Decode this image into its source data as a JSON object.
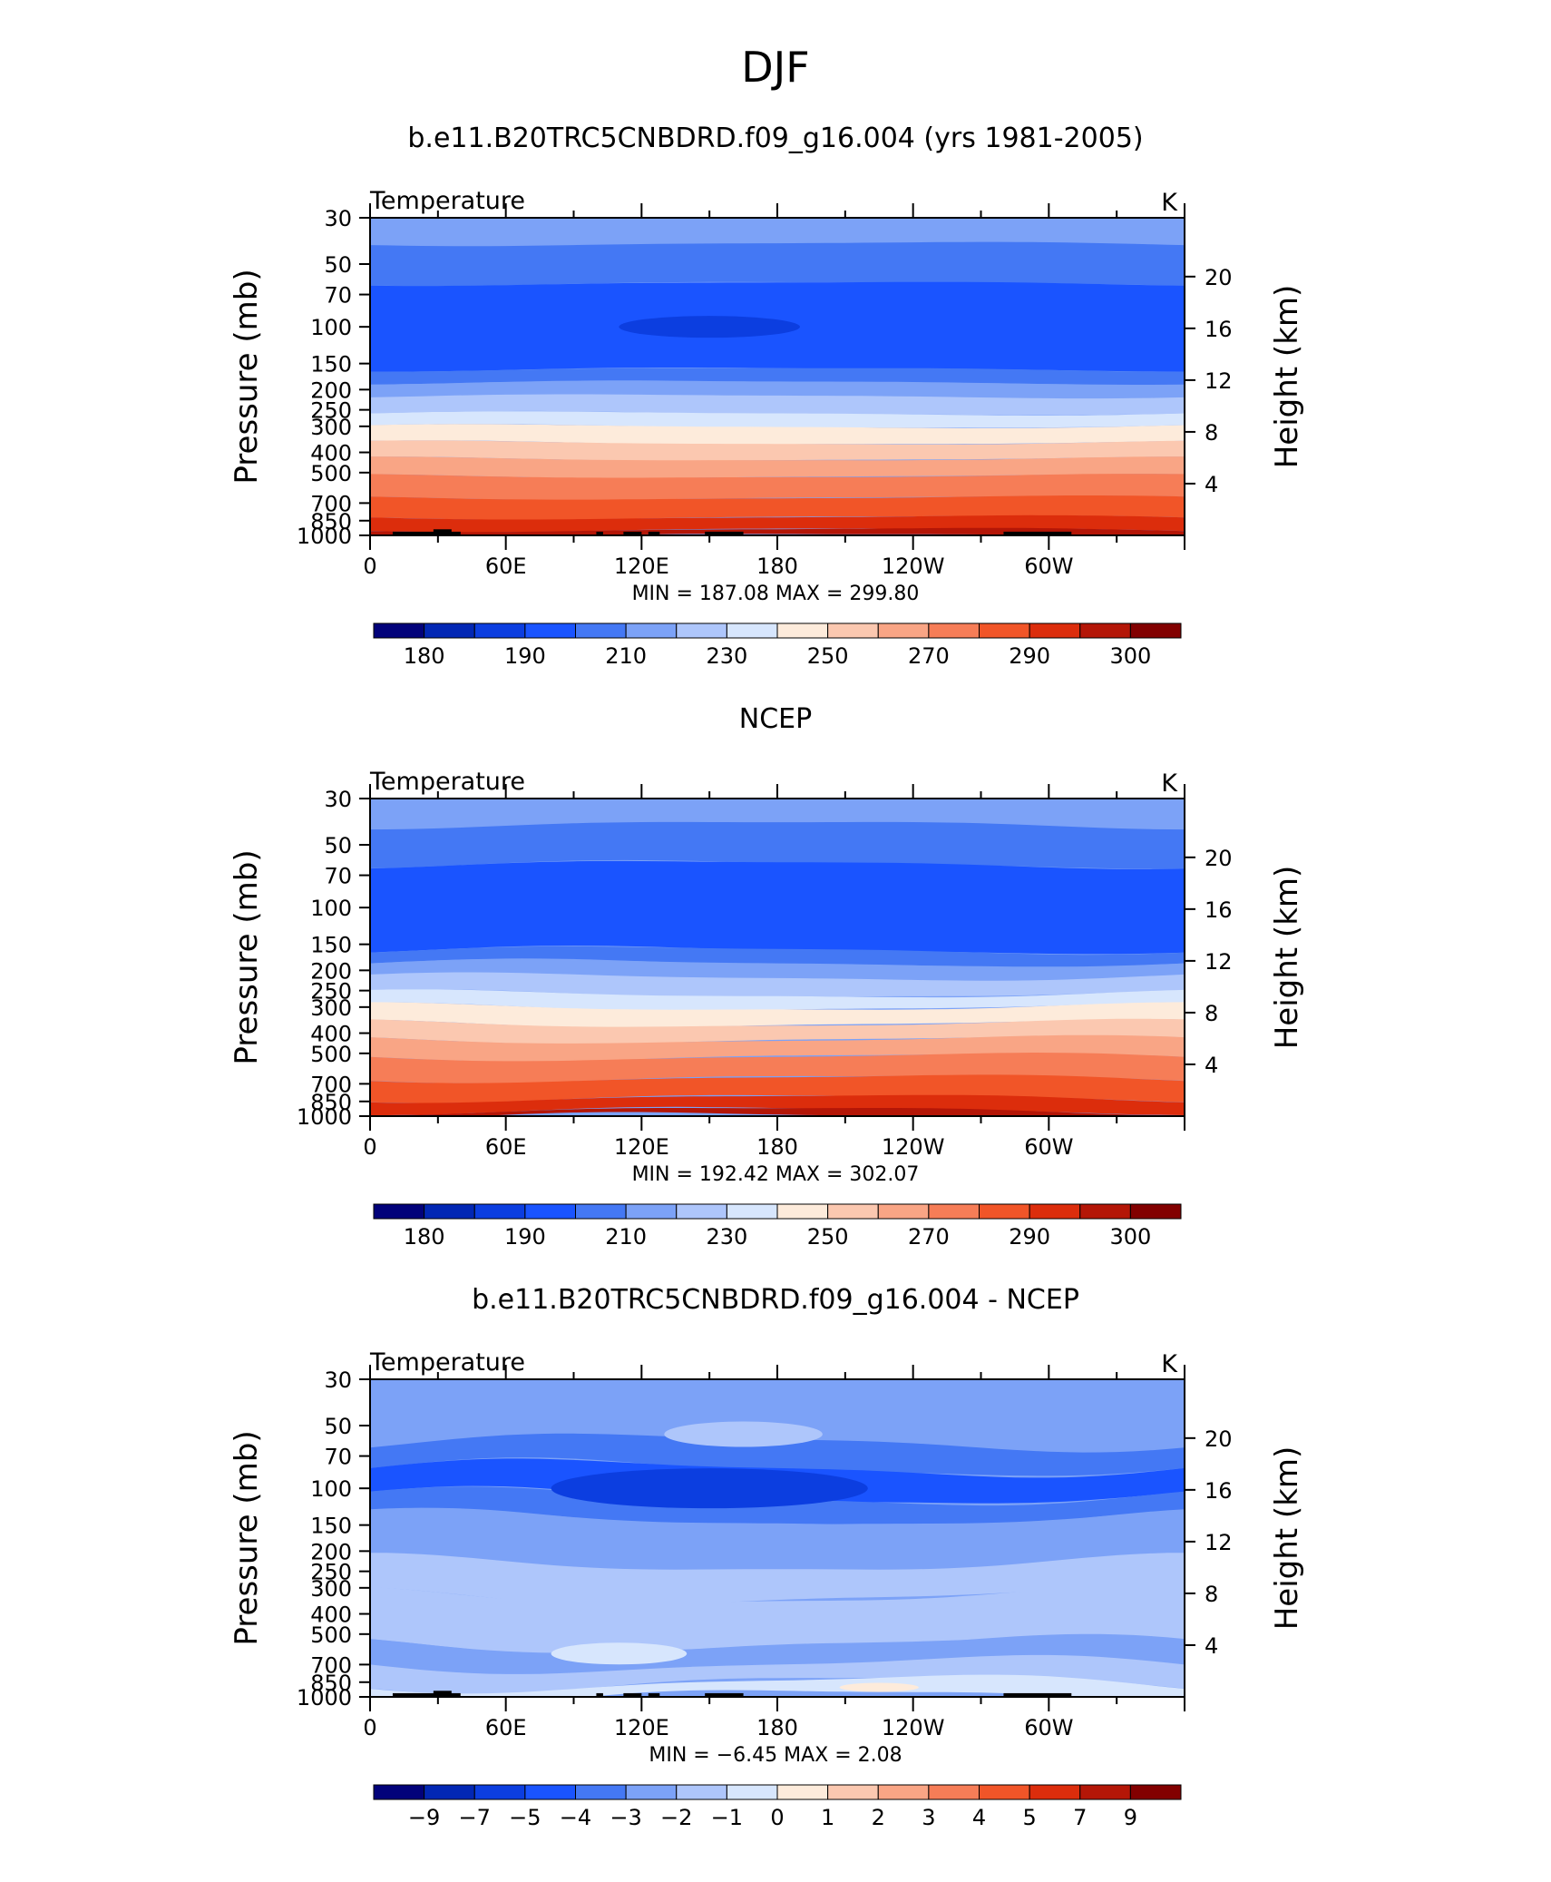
{
  "page": {
    "title": "DJF"
  },
  "panels": [
    {
      "title": "b.e11.B20TRC5CNBDRD.f09_g16.004 (yrs 1981-2005)",
      "left_string": "Temperature",
      "right_string": "K",
      "minmax": "MIN =  187.08   MAX =  299.80",
      "colorbar_labels": [
        "180",
        "190",
        "210",
        "230",
        "250",
        "270",
        "290",
        "300"
      ],
      "colorbar_colors": [
        "#02027a",
        "#0227b4",
        "#0c3ee0",
        "#1a54ff",
        "#4478f4",
        "#7ca2f7",
        "#aec6fb",
        "#d7e6fd",
        "#fdebdb",
        "#fbc8b0",
        "#f9a585",
        "#f67d57",
        "#f15528",
        "#dc2d0c",
        "#b41607",
        "#820000"
      ]
    },
    {
      "title": "NCEP",
      "left_string": "Temperature",
      "right_string": "K",
      "minmax": "MIN =  192.42   MAX =  302.07",
      "colorbar_labels": [
        "180",
        "190",
        "210",
        "230",
        "250",
        "270",
        "290",
        "300"
      ],
      "colorbar_colors": [
        "#02027a",
        "#0227b4",
        "#0c3ee0",
        "#1a54ff",
        "#4478f4",
        "#7ca2f7",
        "#aec6fb",
        "#d7e6fd",
        "#fdebdb",
        "#fbc8b0",
        "#f9a585",
        "#f67d57",
        "#f15528",
        "#dc2d0c",
        "#b41607",
        "#820000"
      ]
    },
    {
      "title": "b.e11.B20TRC5CNBDRD.f09_g16.004 - NCEP",
      "left_string": "Temperature",
      "right_string": "K",
      "minmax": "MIN =    −6.45   MAX =     2.08",
      "colorbar_labels": [
        "−9",
        "−7",
        "−5",
        "−4",
        "−3",
        "−2",
        "−1",
        "0",
        "1",
        "2",
        "3",
        "4",
        "5",
        "7",
        "9"
      ],
      "colorbar_colors": [
        "#02027a",
        "#0227b4",
        "#0c3ee0",
        "#1a54ff",
        "#4478f4",
        "#7ca2f7",
        "#aec6fb",
        "#d7e6fd",
        "#fdebdb",
        "#fbc8b0",
        "#f9a585",
        "#f67d57",
        "#f15528",
        "#dc2d0c",
        "#b41607",
        "#820000"
      ]
    }
  ],
  "axes": {
    "ylabel": "Pressure  (mb)",
    "y2label": "Height  (km)",
    "pressure_ticks": [
      "30",
      "50",
      "70",
      "100",
      "150",
      "200",
      "250",
      "300",
      "400",
      "500",
      "700",
      "850",
      "1000"
    ],
    "height_ticks": [
      "20",
      "16",
      "12",
      "8",
      "4"
    ],
    "lon_ticks": [
      "0",
      "60E",
      "120E",
      "180",
      "120W",
      "60W"
    ]
  },
  "chart_data": [
    {
      "type": "heatmap",
      "title": "b.e11.B20TRC5CNBDRD.f09_g16.004 (yrs 1981-2005)",
      "variable": "Temperature",
      "units": "K",
      "x_axis": "longitude, 0 to 360 (0, 60E, 120E, 180, 120W, 60W)",
      "y_axis": "pressure (mb), log scale, 30 to 1000",
      "y2_axis": "height (km), 4 to 20",
      "min": 187.08,
      "max": 299.8,
      "bands_by_level": [
        {
          "pressure": 30,
          "temperature_band": "210-220"
        },
        {
          "pressure": 50,
          "temperature_band": "200-210"
        },
        {
          "pressure": 100,
          "temperature_band": "190-200 (185-190 near 120E-150W)"
        },
        {
          "pressure": 150,
          "temperature_band": "200-210"
        },
        {
          "pressure": 200,
          "temperature_band": "210-220"
        },
        {
          "pressure": 300,
          "temperature_band": "230-240"
        },
        {
          "pressure": 400,
          "temperature_band": "250-260"
        },
        {
          "pressure": 500,
          "temperature_band": "260-270"
        },
        {
          "pressure": 700,
          "temperature_band": "280-290"
        },
        {
          "pressure": 1000,
          "temperature_band": "290-300"
        }
      ]
    },
    {
      "type": "heatmap",
      "title": "NCEP",
      "variable": "Temperature",
      "units": "K",
      "min": 192.42,
      "max": 302.07,
      "bands_by_level": [
        {
          "pressure": 30,
          "temperature_band": "210-220"
        },
        {
          "pressure": 50,
          "temperature_band": "200-210"
        },
        {
          "pressure": 100,
          "temperature_band": "190-200"
        },
        {
          "pressure": 150,
          "temperature_band": "200-210"
        },
        {
          "pressure": 200,
          "temperature_band": "210-220"
        },
        {
          "pressure": 300,
          "temperature_band": "240-250"
        },
        {
          "pressure": 400,
          "temperature_band": "250-260"
        },
        {
          "pressure": 500,
          "temperature_band": "260-270"
        },
        {
          "pressure": 700,
          "temperature_band": "280-290"
        },
        {
          "pressure": 1000,
          "temperature_band": "290-300"
        }
      ]
    },
    {
      "type": "heatmap",
      "title": "b.e11.B20TRC5CNBDRD.f09_g16.004 - NCEP",
      "variable": "Temperature",
      "units": "K",
      "min": -6.45,
      "max": 2.08,
      "bands_by_level": [
        {
          "pressure": 30,
          "difference_band": "-3 to -2"
        },
        {
          "pressure": 50,
          "difference_band": "-3 to -2"
        },
        {
          "pressure": 100,
          "difference_band": "-5 to -4 (-7 to -5 near 120E-150W)"
        },
        {
          "pressure": 200,
          "difference_band": "-4 to -3"
        },
        {
          "pressure": 300,
          "difference_band": "-3 to -2"
        },
        {
          "pressure": 500,
          "difference_band": "-2 to -1"
        },
        {
          "pressure": 850,
          "difference_band": "-1 to 0 (0 to 1 near 150W)"
        }
      ]
    }
  ]
}
